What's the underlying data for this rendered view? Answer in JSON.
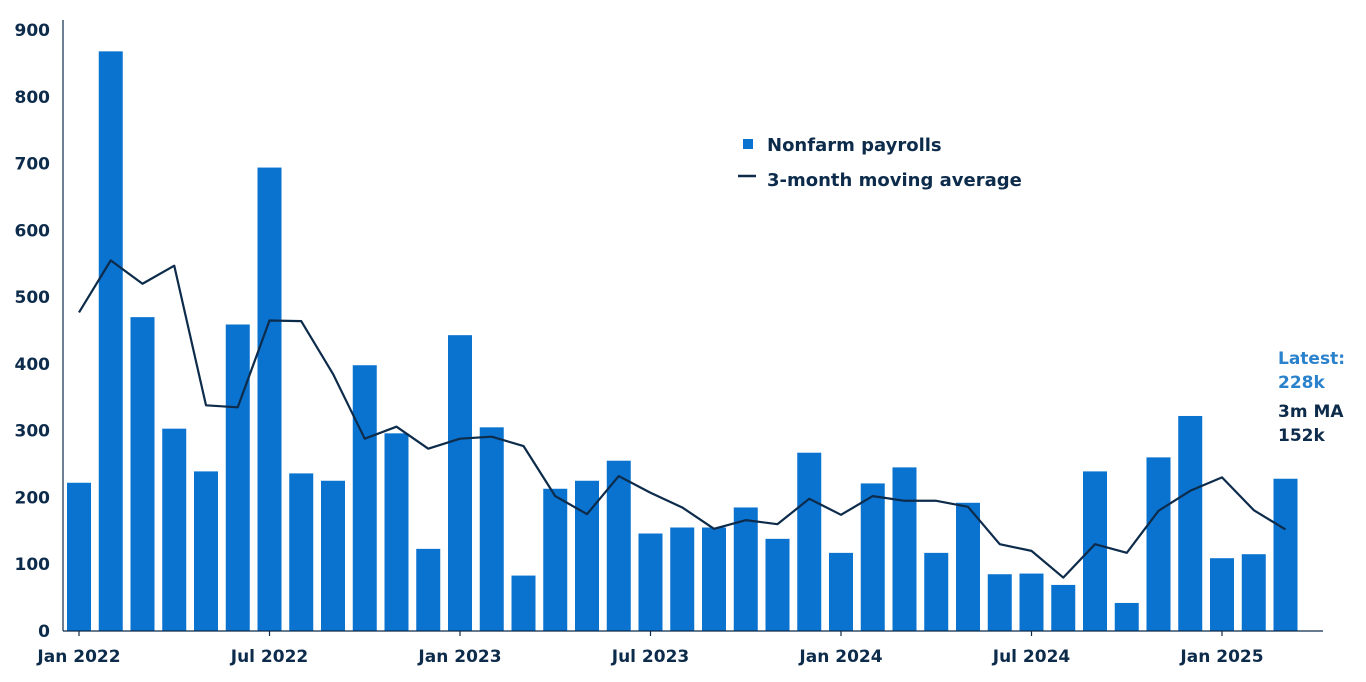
{
  "chart_data": {
    "type": "bar",
    "title": "",
    "xlabel": "",
    "ylabel": "",
    "ylim": [
      0,
      900
    ],
    "yticks": [
      0,
      100,
      200,
      300,
      400,
      500,
      600,
      700,
      800,
      900
    ],
    "grid": false,
    "legend_position": "top-center",
    "x_tick_labels": [
      {
        "index": 0,
        "label": "Jan 2022"
      },
      {
        "index": 6,
        "label": "Jul 2022"
      },
      {
        "index": 12,
        "label": "Jan 2023"
      },
      {
        "index": 18,
        "label": "Jul 2023"
      },
      {
        "index": 24,
        "label": "Jan 2024"
      },
      {
        "index": 30,
        "label": "Jul 2024"
      },
      {
        "index": 36,
        "label": "Jan 2025"
      }
    ],
    "series": [
      {
        "name": "Nonfarm payrolls",
        "kind": "bar",
        "color": "#0a72cf",
        "values": [
          222,
          868,
          470,
          303,
          239,
          459,
          694,
          236,
          225,
          398,
          296,
          123,
          443,
          305,
          83,
          213,
          225,
          255,
          146,
          155,
          155,
          185,
          138,
          267,
          117,
          221,
          245,
          117,
          192,
          85,
          86,
          69,
          239,
          42,
          260,
          322,
          109,
          115,
          228
        ]
      },
      {
        "name": "3-month moving average",
        "kind": "line",
        "color": "#0d2b4a",
        "values": [
          477,
          555,
          520,
          547,
          338,
          335,
          465,
          464,
          385,
          288,
          306,
          273,
          288,
          291,
          277,
          202,
          175,
          232,
          207,
          185,
          153,
          166,
          160,
          198,
          174,
          202,
          195,
          195,
          186,
          130,
          120,
          80,
          130,
          117,
          180,
          210,
          230,
          181,
          152
        ]
      }
    ],
    "annotation": {
      "latest_label": "Latest:",
      "latest_value": "228k",
      "ma_label": "3m MA",
      "ma_value": "152k"
    }
  }
}
